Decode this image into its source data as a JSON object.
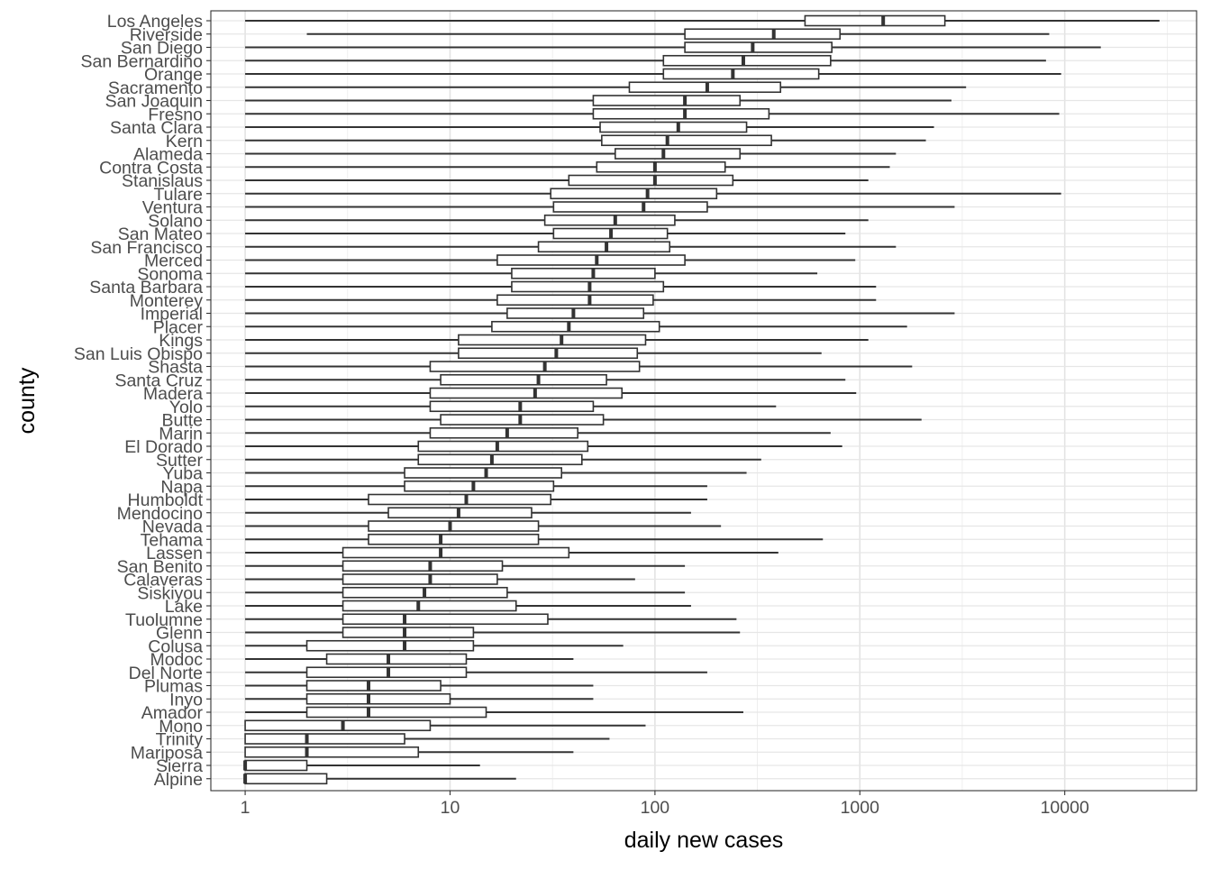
{
  "chart_data": {
    "type": "boxplot",
    "orientation": "horizontal",
    "xlabel": "daily new cases",
    "ylabel": "county",
    "x_scale": "log10",
    "xlim": [
      0.68,
      44000
    ],
    "x_ticks": [
      1,
      10,
      100,
      1000,
      10000
    ],
    "x_tick_labels": [
      "1",
      "10",
      "100",
      "1000",
      "10000"
    ],
    "grid": true,
    "categories": [
      "Los Angeles",
      "Riverside",
      "San Diego",
      "San Bernardino",
      "Orange",
      "Sacramento",
      "San Joaquin",
      "Fresno",
      "Santa Clara",
      "Kern",
      "Alameda",
      "Contra Costa",
      "Stanislaus",
      "Tulare",
      "Ventura",
      "Solano",
      "San Mateo",
      "San Francisco",
      "Merced",
      "Sonoma",
      "Santa Barbara",
      "Monterey",
      "Imperial",
      "Placer",
      "Kings",
      "San Luis Obispo",
      "Shasta",
      "Santa Cruz",
      "Madera",
      "Yolo",
      "Butte",
      "Marin",
      "El Dorado",
      "Sutter",
      "Yuba",
      "Napa",
      "Humboldt",
      "Mendocino",
      "Nevada",
      "Tehama",
      "Lassen",
      "San Benito",
      "Calaveras",
      "Siskiyou",
      "Lake",
      "Tuolumne",
      "Glenn",
      "Colusa",
      "Modoc",
      "Del Norte",
      "Plumas",
      "Inyo",
      "Amador",
      "Mono",
      "Trinity",
      "Mariposa",
      "Sierra",
      "Alpine"
    ],
    "boxes": [
      {
        "min": 1,
        "q1": 540,
        "median": 1300,
        "q3": 2600,
        "max": 29000
      },
      {
        "min": 2,
        "q1": 140,
        "median": 380,
        "q3": 800,
        "max": 8400
      },
      {
        "min": 1,
        "q1": 140,
        "median": 300,
        "q3": 730,
        "max": 15000
      },
      {
        "min": 1,
        "q1": 110,
        "median": 270,
        "q3": 720,
        "max": 8100
      },
      {
        "min": 1,
        "q1": 110,
        "median": 240,
        "q3": 630,
        "max": 9600
      },
      {
        "min": 1,
        "q1": 75,
        "median": 180,
        "q3": 410,
        "max": 3300
      },
      {
        "min": 1,
        "q1": 50,
        "median": 140,
        "q3": 260,
        "max": 2800
      },
      {
        "min": 1,
        "q1": 50,
        "median": 140,
        "q3": 360,
        "max": 9400
      },
      {
        "min": 1,
        "q1": 54,
        "median": 130,
        "q3": 280,
        "max": 2300
      },
      {
        "min": 1,
        "q1": 55,
        "median": 115,
        "q3": 370,
        "max": 2100
      },
      {
        "min": 1,
        "q1": 64,
        "median": 110,
        "q3": 260,
        "max": 1500
      },
      {
        "min": 1,
        "q1": 52,
        "median": 100,
        "q3": 220,
        "max": 1400
      },
      {
        "min": 1,
        "q1": 38,
        "median": 100,
        "q3": 240,
        "max": 1100
      },
      {
        "min": 1,
        "q1": 31,
        "median": 92,
        "q3": 200,
        "max": 9600
      },
      {
        "min": 1,
        "q1": 32,
        "median": 88,
        "q3": 180,
        "max": 2900
      },
      {
        "min": 1,
        "q1": 29,
        "median": 64,
        "q3": 125,
        "max": 1100
      },
      {
        "min": 1,
        "q1": 32,
        "median": 61,
        "q3": 115,
        "max": 850
      },
      {
        "min": 1,
        "q1": 27,
        "median": 58,
        "q3": 118,
        "max": 1500
      },
      {
        "min": 1,
        "q1": 17,
        "median": 52,
        "q3": 140,
        "max": 950
      },
      {
        "min": 1,
        "q1": 20,
        "median": 50,
        "q3": 100,
        "max": 620
      },
      {
        "min": 1,
        "q1": 20,
        "median": 48,
        "q3": 110,
        "max": 1200
      },
      {
        "min": 1,
        "q1": 17,
        "median": 48,
        "q3": 98,
        "max": 1200
      },
      {
        "min": 1,
        "q1": 19,
        "median": 40,
        "q3": 88,
        "max": 2900
      },
      {
        "min": 1,
        "q1": 16,
        "median": 38,
        "q3": 105,
        "max": 1700
      },
      {
        "min": 1,
        "q1": 11,
        "median": 35,
        "q3": 90,
        "max": 1100
      },
      {
        "min": 1,
        "q1": 11,
        "median": 33,
        "q3": 82,
        "max": 650
      },
      {
        "min": 1,
        "q1": 8,
        "median": 29,
        "q3": 84,
        "max": 1800
      },
      {
        "min": 1,
        "q1": 9,
        "median": 27,
        "q3": 58,
        "max": 850
      },
      {
        "min": 1,
        "q1": 8,
        "median": 26,
        "q3": 69,
        "max": 960
      },
      {
        "min": 1,
        "q1": 8,
        "median": 22,
        "q3": 50,
        "max": 390
      },
      {
        "min": 1,
        "q1": 9,
        "median": 22,
        "q3": 56,
        "max": 2000
      },
      {
        "min": 1,
        "q1": 8,
        "median": 19,
        "q3": 42,
        "max": 720
      },
      {
        "min": 1,
        "q1": 7,
        "median": 17,
        "q3": 47,
        "max": 820
      },
      {
        "min": 1,
        "q1": 7,
        "median": 16,
        "q3": 44,
        "max": 330
      },
      {
        "min": 1,
        "q1": 6,
        "median": 15,
        "q3": 35,
        "max": 280
      },
      {
        "min": 1,
        "q1": 6,
        "median": 13,
        "q3": 32,
        "max": 180
      },
      {
        "min": 1,
        "q1": 4,
        "median": 12,
        "q3": 31,
        "max": 180
      },
      {
        "min": 1,
        "q1": 5,
        "median": 11,
        "q3": 25,
        "max": 150
      },
      {
        "min": 1,
        "q1": 4,
        "median": 10,
        "q3": 27,
        "max": 210
      },
      {
        "min": 1,
        "q1": 4,
        "median": 9,
        "q3": 27,
        "max": 660
      },
      {
        "min": 1,
        "q1": 3,
        "median": 9,
        "q3": 38,
        "max": 400
      },
      {
        "min": 1,
        "q1": 3,
        "median": 8,
        "q3": 18,
        "max": 140
      },
      {
        "min": 1,
        "q1": 3,
        "median": 8,
        "q3": 17,
        "max": 80
      },
      {
        "min": 1,
        "q1": 3,
        "median": 7.5,
        "q3": 19,
        "max": 140
      },
      {
        "min": 1,
        "q1": 3,
        "median": 7,
        "q3": 21,
        "max": 150
      },
      {
        "min": 1,
        "q1": 3,
        "median": 6,
        "q3": 30,
        "max": 250
      },
      {
        "min": 1,
        "q1": 3,
        "median": 6,
        "q3": 13,
        "max": 260
      },
      {
        "min": 1,
        "q1": 2,
        "median": 6,
        "q3": 13,
        "max": 70
      },
      {
        "min": 1,
        "q1": 2.5,
        "median": 5,
        "q3": 12,
        "max": 40
      },
      {
        "min": 1,
        "q1": 2,
        "median": 5,
        "q3": 12,
        "max": 180
      },
      {
        "min": 1,
        "q1": 2,
        "median": 4,
        "q3": 9,
        "max": 50
      },
      {
        "min": 1,
        "q1": 2,
        "median": 4,
        "q3": 10,
        "max": 50
      },
      {
        "min": 1,
        "q1": 2,
        "median": 4,
        "q3": 15,
        "max": 270
      },
      {
        "min": 1,
        "q1": 1,
        "median": 3,
        "q3": 8,
        "max": 90
      },
      {
        "min": 1,
        "q1": 1,
        "median": 2,
        "q3": 6,
        "max": 60
      },
      {
        "min": 1,
        "q1": 1,
        "median": 2,
        "q3": 7,
        "max": 40
      },
      {
        "min": 1,
        "q1": 1,
        "median": 1,
        "q3": 2,
        "max": 14
      },
      {
        "min": 1,
        "q1": 1,
        "median": 1,
        "q3": 2.5,
        "max": 21
      }
    ]
  }
}
